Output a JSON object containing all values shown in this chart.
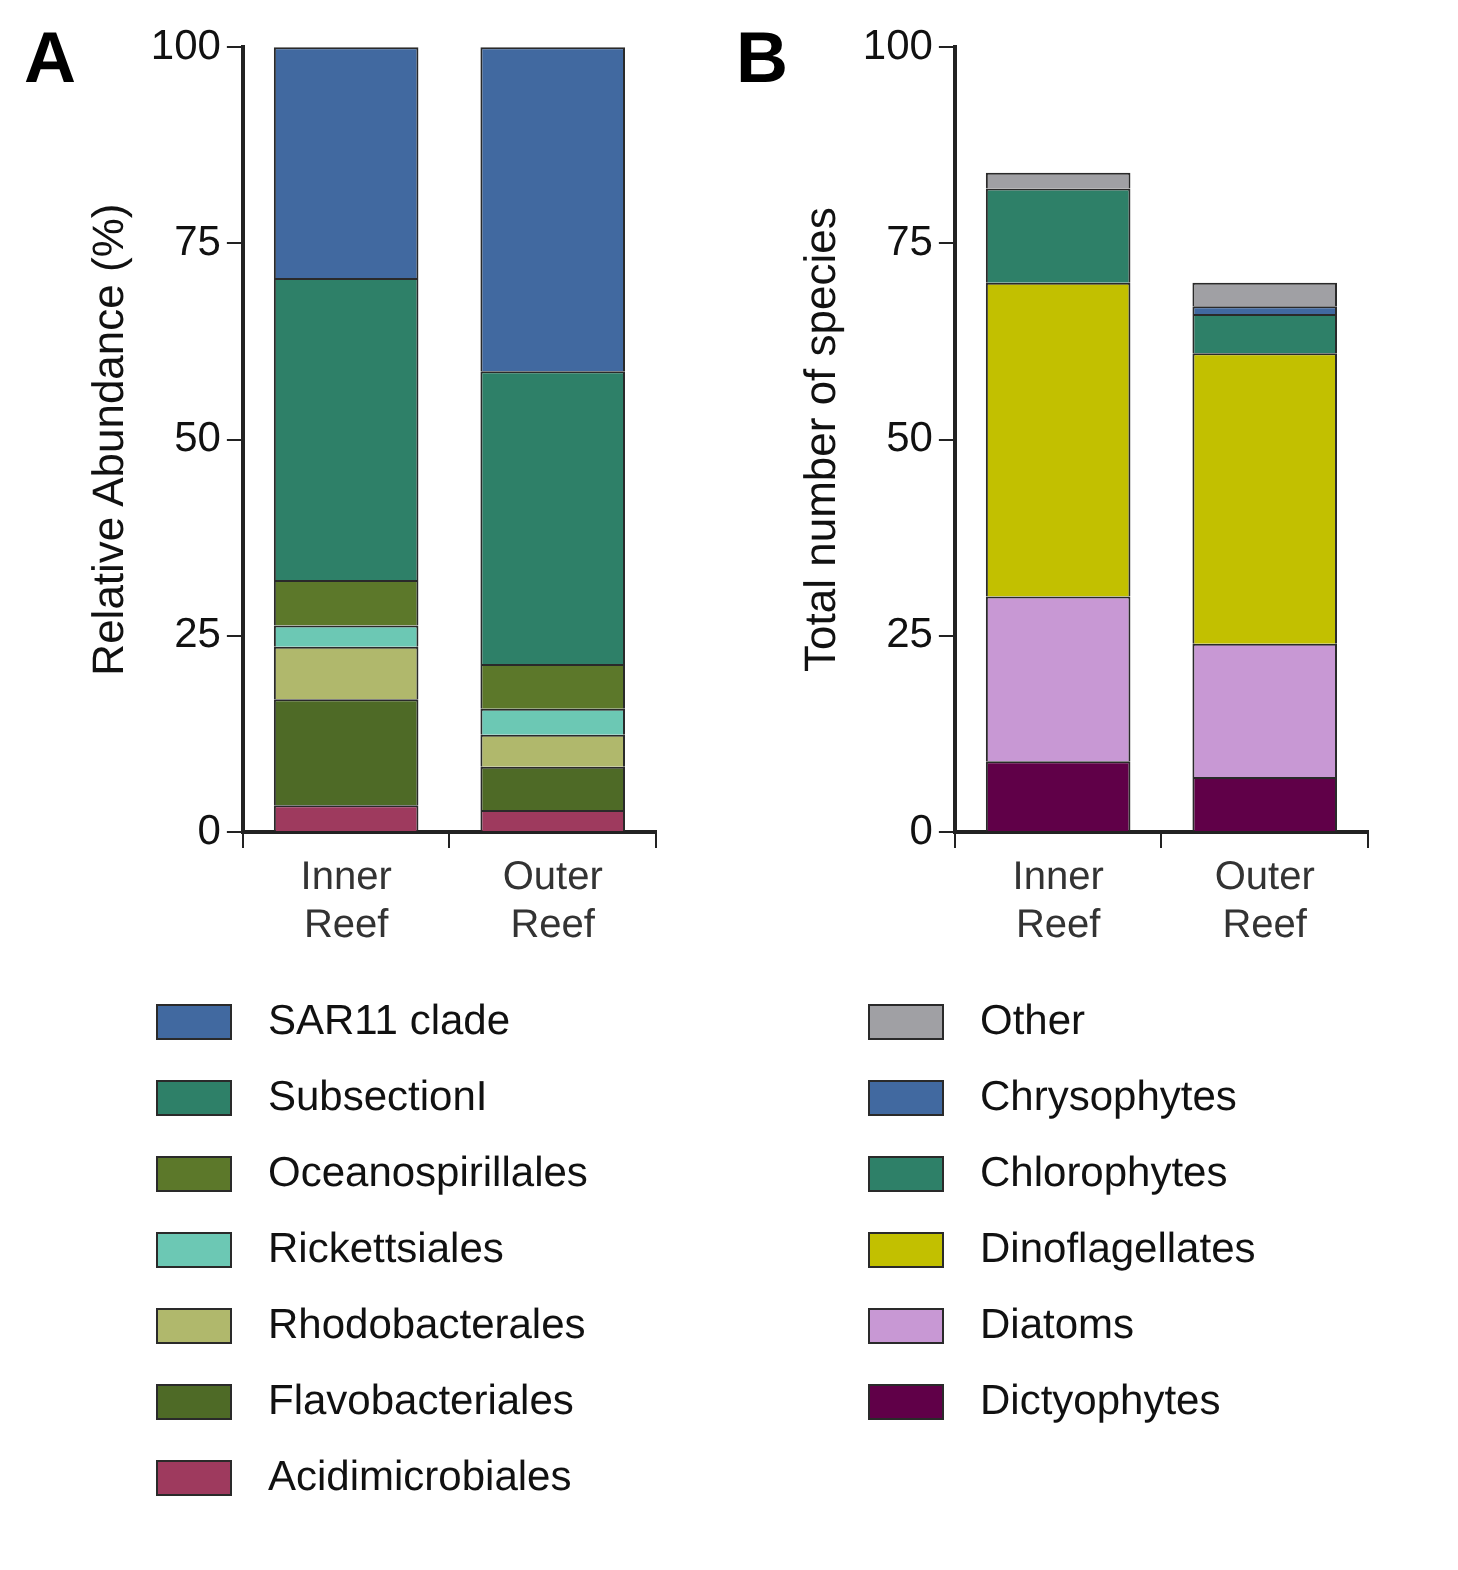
{
  "chart_data": [
    {
      "type": "bar",
      "annotations": [
        "A"
      ],
      "ylabel": "Relative Abundance (%)",
      "categories": [
        "Inner Reef",
        "Outer Reef"
      ],
      "stacked": true,
      "ylim": [
        0,
        100
      ],
      "yticks": [
        0,
        25,
        50,
        75,
        100
      ],
      "grid": false,
      "legend": "bottom",
      "series": [
        {
          "name": "Acidimicrobiales",
          "color": "#9e3a5e",
          "values": [
            3.4,
            2.8
          ]
        },
        {
          "name": "Flavobacteriales",
          "color": "#4e6a26",
          "values": [
            13.5,
            5.5
          ]
        },
        {
          "name": "Rhodobacterales",
          "color": "#b0b86c",
          "values": [
            6.7,
            4.1
          ]
        },
        {
          "name": "Rickettsiales",
          "color": "#6cc8b4",
          "values": [
            2.7,
            3.3
          ]
        },
        {
          "name": "Oceanospirillales",
          "color": "#5c782a",
          "values": [
            5.8,
            5.7
          ]
        },
        {
          "name": "SubsectionI",
          "color": "#2e8068",
          "values": [
            38.5,
            37.3
          ]
        },
        {
          "name": "SAR11 clade",
          "color": "#4169a0",
          "values": [
            29.4,
            41.3
          ]
        }
      ]
    },
    {
      "type": "bar",
      "annotations": [
        "B"
      ],
      "ylabel": "Total number of species",
      "categories": [
        "Inner Reef",
        "Outer Reef"
      ],
      "stacked": true,
      "ylim": [
        0,
        100
      ],
      "yticks": [
        0,
        25,
        50,
        75,
        100
      ],
      "grid": false,
      "legend": "bottom",
      "series": [
        {
          "name": "Dictyophytes",
          "color": "#600048",
          "values": [
            9,
            7
          ]
        },
        {
          "name": "Diatoms",
          "color": "#c898d4",
          "values": [
            21,
            17
          ]
        },
        {
          "name": "Dinoflagellates",
          "color": "#c2c000",
          "values": [
            40,
            37
          ]
        },
        {
          "name": "Chlorophytes",
          "color": "#2e8068",
          "values": [
            12,
            5
          ]
        },
        {
          "name": "Chrysophytes",
          "color": "#4169a0",
          "values": [
            0,
            1
          ]
        },
        {
          "name": "Other",
          "color": "#a0a0a4",
          "values": [
            2,
            3
          ]
        }
      ]
    }
  ]
}
